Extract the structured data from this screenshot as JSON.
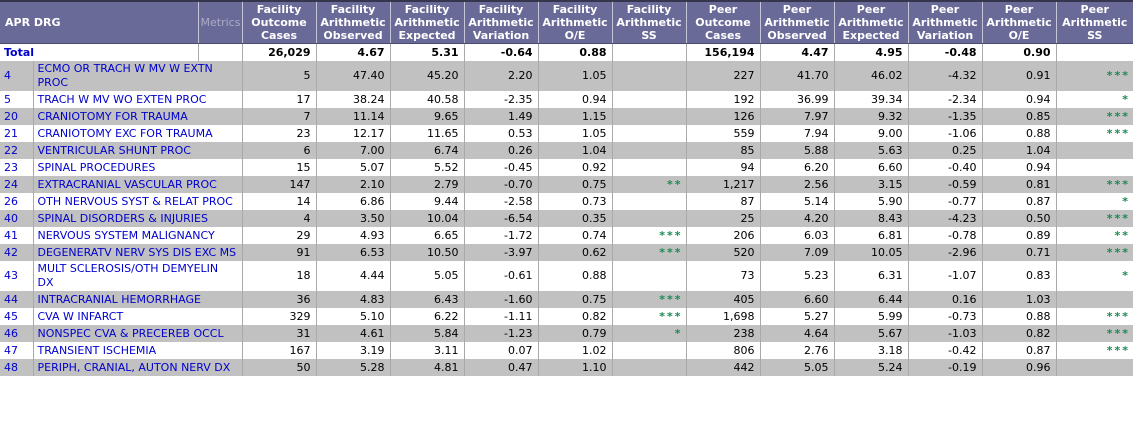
{
  "header": {
    "apr_drg": "APR DRG",
    "metrics": "Metrics",
    "metric_columns": [
      "Facility\nOutcome\nCases",
      "Facility\nArithmetic\nObserved",
      "Facility\nArithmetic\nExpected",
      "Facility\nArithmetic\nVariation",
      "Facility\nArithmetic\nO/E",
      "Facility\nArithmetic\nSS",
      "Peer\nOutcome\nCases",
      "Peer\nArithmetic\nObserved",
      "Peer\nArithmetic\nExpected",
      "Peer\nArithmetic\nVariation",
      "Peer\nArithmetic\nO/E",
      "Peer\nArithmetic\nSS"
    ]
  },
  "total": {
    "label": "Total",
    "values": [
      "26,029",
      "4.67",
      "5.31",
      "-0.64",
      "0.88",
      "",
      "156,194",
      "4.47",
      "4.95",
      "-0.48",
      "0.90",
      ""
    ]
  },
  "rows": [
    {
      "code": "4",
      "desc": "ECMO OR TRACH W MV W EXTN PROC",
      "values": [
        "5",
        "47.40",
        "45.20",
        "2.20",
        "1.05",
        "",
        "227",
        "41.70",
        "46.02",
        "-4.32",
        "0.91",
        "***"
      ]
    },
    {
      "code": "5",
      "desc": "TRACH W MV WO EXTEN PROC",
      "values": [
        "17",
        "38.24",
        "40.58",
        "-2.35",
        "0.94",
        "",
        "192",
        "36.99",
        "39.34",
        "-2.34",
        "0.94",
        "*"
      ]
    },
    {
      "code": "20",
      "desc": "CRANIOTOMY FOR TRAUMA",
      "values": [
        "7",
        "11.14",
        "9.65",
        "1.49",
        "1.15",
        "",
        "126",
        "7.97",
        "9.32",
        "-1.35",
        "0.85",
        "***"
      ]
    },
    {
      "code": "21",
      "desc": "CRANIOTOMY EXC FOR TRAUMA",
      "values": [
        "23",
        "12.17",
        "11.65",
        "0.53",
        "1.05",
        "",
        "559",
        "7.94",
        "9.00",
        "-1.06",
        "0.88",
        "***"
      ]
    },
    {
      "code": "22",
      "desc": "VENTRICULAR SHUNT PROC",
      "values": [
        "6",
        "7.00",
        "6.74",
        "0.26",
        "1.04",
        "",
        "85",
        "5.88",
        "5.63",
        "0.25",
        "1.04",
        ""
      ]
    },
    {
      "code": "23",
      "desc": "SPINAL PROCEDURES",
      "values": [
        "15",
        "5.07",
        "5.52",
        "-0.45",
        "0.92",
        "",
        "94",
        "6.20",
        "6.60",
        "-0.40",
        "0.94",
        ""
      ]
    },
    {
      "code": "24",
      "desc": "EXTRACRANIAL VASCULAR PROC",
      "values": [
        "147",
        "2.10",
        "2.79",
        "-0.70",
        "0.75",
        "**",
        "1,217",
        "2.56",
        "3.15",
        "-0.59",
        "0.81",
        "***"
      ]
    },
    {
      "code": "26",
      "desc": "OTH NERVOUS SYST & RELAT PROC",
      "values": [
        "14",
        "6.86",
        "9.44",
        "-2.58",
        "0.73",
        "",
        "87",
        "5.14",
        "5.90",
        "-0.77",
        "0.87",
        "*"
      ]
    },
    {
      "code": "40",
      "desc": "SPINAL DISORDERS & INJURIES",
      "values": [
        "4",
        "3.50",
        "10.04",
        "-6.54",
        "0.35",
        "",
        "25",
        "4.20",
        "8.43",
        "-4.23",
        "0.50",
        "***"
      ]
    },
    {
      "code": "41",
      "desc": "NERVOUS SYSTEM MALIGNANCY",
      "values": [
        "29",
        "4.93",
        "6.65",
        "-1.72",
        "0.74",
        "***",
        "206",
        "6.03",
        "6.81",
        "-0.78",
        "0.89",
        "**"
      ]
    },
    {
      "code": "42",
      "desc": "DEGENERATV NERV SYS DIS EXC MS",
      "values": [
        "91",
        "6.53",
        "10.50",
        "-3.97",
        "0.62",
        "***",
        "520",
        "7.09",
        "10.05",
        "-2.96",
        "0.71",
        "***"
      ]
    },
    {
      "code": "43",
      "desc": "MULT SCLEROSIS/OTH DEMYELIN DX",
      "values": [
        "18",
        "4.44",
        "5.05",
        "-0.61",
        "0.88",
        "",
        "73",
        "5.23",
        "6.31",
        "-1.07",
        "0.83",
        "*"
      ]
    },
    {
      "code": "44",
      "desc": "INTRACRANIAL HEMORRHAGE",
      "values": [
        "36",
        "4.83",
        "6.43",
        "-1.60",
        "0.75",
        "***",
        "405",
        "6.60",
        "6.44",
        "0.16",
        "1.03",
        ""
      ]
    },
    {
      "code": "45",
      "desc": "CVA W INFARCT",
      "values": [
        "329",
        "5.10",
        "6.22",
        "-1.11",
        "0.82",
        "***",
        "1,698",
        "5.27",
        "5.99",
        "-0.73",
        "0.88",
        "***"
      ]
    },
    {
      "code": "46",
      "desc": "NONSPEC CVA & PRECEREB OCCL",
      "values": [
        "31",
        "4.61",
        "5.84",
        "-1.23",
        "0.79",
        "*",
        "238",
        "4.64",
        "5.67",
        "-1.03",
        "0.82",
        "***"
      ]
    },
    {
      "code": "47",
      "desc": "TRANSIENT ISCHEMIA",
      "values": [
        "167",
        "3.19",
        "3.11",
        "0.07",
        "1.02",
        "",
        "806",
        "2.76",
        "3.18",
        "-0.42",
        "0.87",
        "***"
      ]
    },
    {
      "code": "48",
      "desc": "PERIPH, CRANIAL, AUTON NERV DX",
      "values": [
        "50",
        "5.28",
        "4.81",
        "0.47",
        "1.10",
        "",
        "442",
        "5.05",
        "5.24",
        "-0.19",
        "0.96",
        ""
      ]
    }
  ],
  "colors": {
    "header_bg": "#6A6A99",
    "row_alt_gray": "#C1C1C1",
    "link_blue": "#0000CD",
    "ss_green": "#1B8A52"
  }
}
